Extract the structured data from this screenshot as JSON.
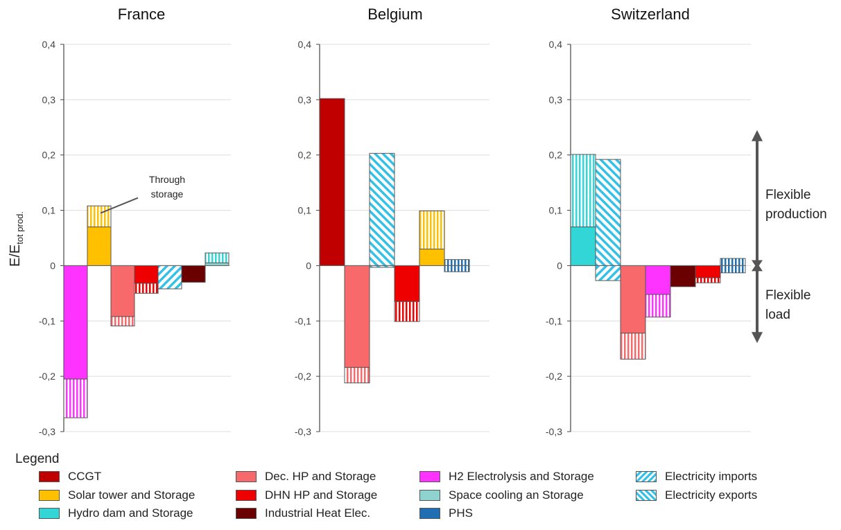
{
  "chart_data": {
    "type": "bar",
    "ylabel_main": "E/E",
    "ylabel_sub": "tot prod.",
    "ylim": [
      -0.3,
      0.4
    ],
    "yticks": [
      "0,4",
      "0,3",
      "0,2",
      "0,1",
      "0",
      "-0,1",
      "-0,2",
      "-0,3"
    ],
    "legend_title": "Legend",
    "series": [
      {
        "key": "ccgt",
        "name": "CCGT",
        "color": "#C00000",
        "pattern": "solid"
      },
      {
        "key": "solar",
        "name": "Solar tower and Storage",
        "color": "#FFC000",
        "pattern": "solid"
      },
      {
        "key": "hydro",
        "name": "Hydro dam and Storage",
        "color": "#33D6D6",
        "pattern": "solid"
      },
      {
        "key": "dechp",
        "name": "Dec. HP and Storage",
        "color": "#F8696B",
        "pattern": "solid"
      },
      {
        "key": "dhnhp",
        "name": "DHN HP and Storage",
        "color": "#EE0000",
        "pattern": "solid"
      },
      {
        "key": "indheat",
        "name": "Industrial Heat Elec.",
        "color": "#6B0000",
        "pattern": "solid"
      },
      {
        "key": "h2",
        "name": "H2 Electrolysis and Storage",
        "color": "#FF33FF",
        "pattern": "solid"
      },
      {
        "key": "cooling",
        "name": "Space cooling an Storage",
        "color": "#8ED3D0",
        "pattern": "solid"
      },
      {
        "key": "phs",
        "name": "PHS",
        "color": "#1F6FB2",
        "pattern": "solid"
      },
      {
        "key": "imports",
        "name": "Electricity imports",
        "color": "#33C1E8",
        "pattern": "diag-up"
      },
      {
        "key": "exports",
        "name": "Electricity exports",
        "color": "#33C1E8",
        "pattern": "diag-down"
      }
    ],
    "panels": [
      {
        "title": "France",
        "bars": [
          {
            "series": "h2",
            "value": -0.205,
            "storage": -0.07
          },
          {
            "series": "solar",
            "value": 0.07,
            "storage": 0.038
          },
          {
            "series": "dechp",
            "value": -0.092,
            "storage": -0.017
          },
          {
            "series": "dhnhp",
            "value": -0.032,
            "storage": -0.018
          },
          {
            "series": "exports",
            "value": -0.042,
            "storage": 0
          },
          {
            "series": "indheat",
            "value": -0.03,
            "storage": 0
          },
          {
            "series": "cooling",
            "value": 0.005,
            "storage": 0.018
          }
        ],
        "annotation": {
          "lines": [
            "Through",
            "storage"
          ],
          "target_bar": 1
        }
      },
      {
        "title": "Belgium",
        "bars": [
          {
            "series": "ccgt",
            "value": 0.302,
            "storage": 0
          },
          {
            "series": "dechp",
            "value": -0.184,
            "storage": -0.028
          },
          {
            "series": "imports",
            "value": 0.203,
            "storage": 0,
            "neg": -0.003
          },
          {
            "series": "dhnhp",
            "value": -0.065,
            "storage": -0.036
          },
          {
            "series": "solar",
            "value": 0.03,
            "storage": 0.069
          },
          {
            "series": "phs",
            "value": 0.011,
            "storage": 0,
            "neg": -0.011,
            "hatched": true
          }
        ]
      },
      {
        "title": "Switzerland",
        "bars": [
          {
            "series": "hydro",
            "value": 0.07,
            "storage": 0.131
          },
          {
            "series": "imports",
            "value": 0.192,
            "storage": 0,
            "neg": -0.027,
            "neg_series": "exports"
          },
          {
            "series": "dechp",
            "value": -0.122,
            "storage": -0.047
          },
          {
            "series": "h2",
            "value": -0.052,
            "storage": -0.041
          },
          {
            "series": "indheat",
            "value": -0.038,
            "storage": 0
          },
          {
            "series": "dhnhp",
            "value": -0.022,
            "storage": -0.009
          },
          {
            "series": "phs",
            "value": 0.013,
            "storage": 0,
            "neg": -0.013,
            "hatched": true
          }
        ]
      }
    ],
    "side_annotations": {
      "production": [
        "Flexible",
        "production"
      ],
      "load": [
        "Flexible",
        "load"
      ]
    }
  }
}
